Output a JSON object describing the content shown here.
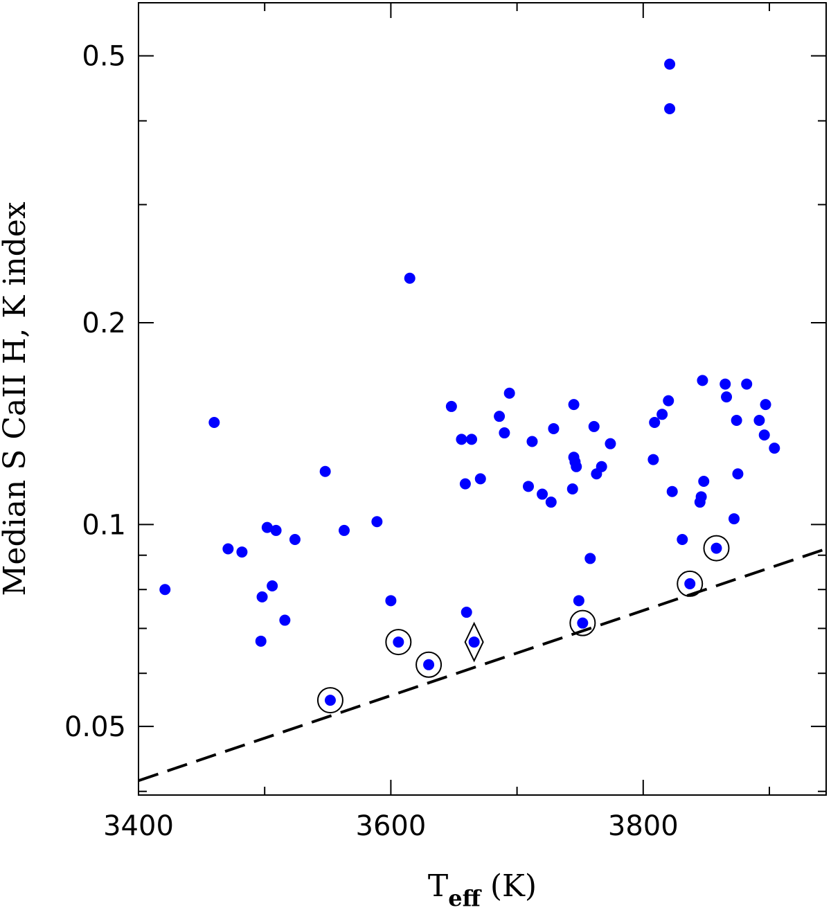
{
  "chart_data": {
    "type": "scatter",
    "title": "",
    "xlabel": "T",
    "xlabel_sub": "eff",
    "xlabel_unit": " (K)",
    "ylabel": "Median S CaII H, K index",
    "xlim": [
      3400,
      3945
    ],
    "ylim": [
      0.0395,
      0.6
    ],
    "yscale": "log",
    "grid": false,
    "x_ticks": [
      3400,
      3600,
      3800
    ],
    "x_tick_labels": [
      "3400",
      "3600",
      "3800"
    ],
    "x_minor_ticks": [
      3500,
      3700,
      3900
    ],
    "y_ticks": [
      0.05,
      0.1,
      0.2,
      0.5
    ],
    "y_tick_labels": [
      "0.05",
      "0.1",
      "0.2",
      "0.5"
    ],
    "y_minor_ticks": [
      0.04,
      0.06,
      0.07,
      0.08,
      0.09,
      0.3,
      0.4
    ],
    "point_color": "#0000ff",
    "series": [
      {
        "points": [
          [
            3421,
            0.08
          ],
          [
            3460,
            0.142
          ],
          [
            3471,
            0.092
          ],
          [
            3482,
            0.091
          ],
          [
            3497,
            0.067
          ],
          [
            3498,
            0.078
          ],
          [
            3502,
            0.099
          ],
          [
            3506,
            0.081
          ],
          [
            3509,
            0.098
          ],
          [
            3516,
            0.072
          ],
          [
            3524,
            0.095
          ],
          [
            3548,
            0.12
          ],
          [
            3563,
            0.098
          ],
          [
            3589,
            0.101
          ],
          [
            3600,
            0.077
          ],
          [
            3615,
            0.233
          ],
          [
            3648,
            0.15
          ],
          [
            3656,
            0.134
          ],
          [
            3659,
            0.115
          ],
          [
            3660,
            0.074
          ],
          [
            3664,
            0.134
          ],
          [
            3671,
            0.117
          ],
          [
            3686,
            0.145
          ],
          [
            3690,
            0.137
          ],
          [
            3694,
            0.157
          ],
          [
            3709,
            0.114
          ],
          [
            3712,
            0.133
          ],
          [
            3720,
            0.111
          ],
          [
            3727,
            0.108
          ],
          [
            3729,
            0.139
          ],
          [
            3744,
            0.113
          ],
          [
            3745,
            0.151
          ],
          [
            3745,
            0.126
          ],
          [
            3746,
            0.124
          ],
          [
            3747,
            0.122
          ],
          [
            3749,
            0.077
          ],
          [
            3758,
            0.089
          ],
          [
            3761,
            0.14
          ],
          [
            3763,
            0.119
          ],
          [
            3767,
            0.122
          ],
          [
            3774,
            0.132
          ],
          [
            3808,
            0.125
          ],
          [
            3809,
            0.142
          ],
          [
            3815,
            0.146
          ],
          [
            3820,
            0.153
          ],
          [
            3821,
            0.486
          ],
          [
            3821,
            0.417
          ],
          [
            3823,
            0.112
          ],
          [
            3831,
            0.095
          ],
          [
            3845,
            0.108
          ],
          [
            3846,
            0.11
          ],
          [
            3847,
            0.164
          ],
          [
            3848,
            0.116
          ],
          [
            3865,
            0.162
          ],
          [
            3866,
            0.155
          ],
          [
            3872,
            0.102
          ],
          [
            3874,
            0.143
          ],
          [
            3875,
            0.119
          ],
          [
            3882,
            0.162
          ],
          [
            3892,
            0.143
          ],
          [
            3896,
            0.136
          ],
          [
            3897,
            0.151
          ],
          [
            3904,
            0.13
          ]
        ]
      },
      {
        "marker": "circled",
        "points": [
          [
            3552,
            0.0547
          ],
          [
            3606,
            0.0668
          ],
          [
            3630,
            0.0618
          ],
          [
            3752,
            0.0713
          ],
          [
            3837,
            0.0816
          ],
          [
            3858,
            0.0922
          ]
        ]
      },
      {
        "marker": "diamond",
        "points": [
          [
            3666,
            0.0668
          ]
        ]
      }
    ],
    "reference_line": {
      "style": "dashed",
      "x": [
        3400,
        3945
      ],
      "y": [
        0.0415,
        0.092
      ]
    }
  }
}
